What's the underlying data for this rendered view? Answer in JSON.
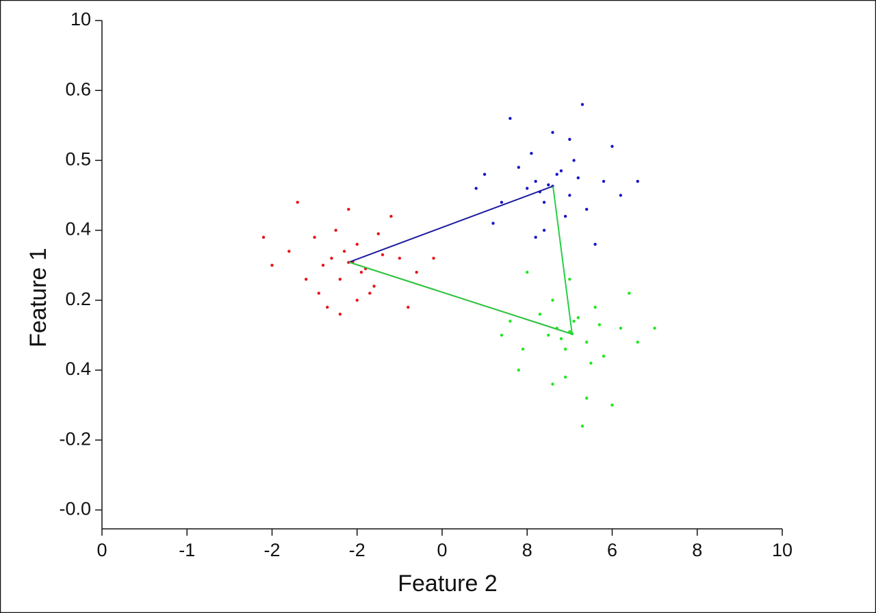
{
  "chart_data": {
    "type": "scatter",
    "xlabel": "Feature 2",
    "ylabel": "Feature 1",
    "xlim": [
      0,
      8
    ],
    "ylim": [
      -0.27,
      7
    ],
    "xticks": [
      0,
      {
        "value": 1,
        "label": "-1"
      },
      {
        "value": 2,
        "label": "-2"
      },
      {
        "value": 3,
        "label": "-2"
      },
      {
        "value": 4,
        "label": "0"
      },
      {
        "value": 5,
        "label": "8"
      },
      {
        "value": 6,
        "label": "6"
      },
      {
        "value": 7,
        "label": "8"
      },
      {
        "value": 8,
        "label": "10"
      }
    ],
    "yticks": [
      {
        "value": 0,
        "label": "-0.0"
      },
      {
        "value": 1,
        "label": "-0.2"
      },
      {
        "value": 2,
        "label": "0.4"
      },
      {
        "value": 3,
        "label": "0.2"
      },
      {
        "value": 4,
        "label": "0.4"
      },
      {
        "value": 5,
        "label": "0.5"
      },
      {
        "value": 6,
        "label": "0.6"
      },
      {
        "value": 7,
        "label": "10"
      }
    ],
    "series": [
      {
        "type": "scatter",
        "color": "#e8141a",
        "x": [
          2.9,
          2.7,
          3.1,
          2.8,
          3.0,
          2.6,
          3.3,
          2.5,
          3.2,
          2.95,
          2.85,
          3.05,
          2.4,
          3.5,
          2.75,
          3.15,
          2.2,
          3.7,
          2.65,
          3.25,
          2.0,
          3.9,
          2.9,
          2.8,
          3.0,
          1.9,
          2.3,
          3.4,
          2.55,
          3.6
        ],
        "y": [
          3.54,
          3.6,
          3.45,
          3.3,
          3.8,
          3.5,
          3.65,
          3.9,
          3.2,
          3.55,
          3.7,
          3.4,
          3.3,
          3.6,
          4.0,
          3.1,
          3.7,
          3.4,
          2.9,
          3.95,
          3.5,
          3.6,
          4.3,
          2.8,
          3.0,
          3.9,
          4.4,
          4.2,
          3.1,
          2.9
        ]
      },
      {
        "type": "scatter",
        "color": "#1a14c8",
        "x": [
          5.3,
          5.1,
          5.5,
          5.2,
          5.4,
          5.0,
          5.6,
          4.9,
          5.7,
          5.25,
          5.35,
          5.15,
          4.7,
          5.9,
          5.05,
          5.45,
          4.5,
          6.1,
          5.2,
          5.55,
          4.4,
          6.3,
          5.3,
          5.1,
          5.5,
          4.8,
          5.8,
          6.0,
          4.6,
          5.65
        ],
        "y": [
          4.63,
          4.7,
          4.5,
          4.4,
          4.85,
          4.6,
          4.75,
          4.9,
          4.3,
          4.65,
          4.8,
          4.55,
          4.4,
          4.7,
          5.1,
          4.2,
          4.8,
          4.5,
          4.0,
          5.0,
          4.6,
          4.7,
          5.4,
          3.9,
          5.3,
          5.6,
          3.8,
          5.2,
          4.1,
          5.8
        ]
      },
      {
        "type": "scatter",
        "color": "#1ee81e",
        "x": [
          5.53,
          5.35,
          5.7,
          5.45,
          5.6,
          5.25,
          5.85,
          5.15,
          5.9,
          5.5,
          5.55,
          5.4,
          4.95,
          6.1,
          5.3,
          5.75,
          4.8,
          6.3,
          5.45,
          5.8,
          4.7,
          6.5,
          5.5,
          5.3,
          5.7,
          5.0,
          6.0,
          6.2,
          4.9,
          5.65
        ],
        "y": [
          2.52,
          2.6,
          2.4,
          2.3,
          2.75,
          2.5,
          2.65,
          2.8,
          2.2,
          2.55,
          2.7,
          2.45,
          2.3,
          2.6,
          3.0,
          2.1,
          2.7,
          2.4,
          1.9,
          2.9,
          2.5,
          2.6,
          3.3,
          1.8,
          1.6,
          3.4,
          1.5,
          3.1,
          2.0,
          1.2
        ]
      },
      {
        "type": "line",
        "color": "#1a1aa0",
        "x": [
          2.905,
          5.304
        ],
        "y": [
          3.544,
          4.631
        ]
      },
      {
        "type": "line",
        "color": "#c01010",
        "x": [
          2.905,
          5.529
        ],
        "y": [
          3.544,
          2.516
        ]
      },
      {
        "type": "line",
        "color": "#22d040",
        "x": [
          5.304,
          5.529,
          2.905
        ],
        "y": [
          4.631,
          2.516,
          3.544
        ]
      }
    ]
  }
}
